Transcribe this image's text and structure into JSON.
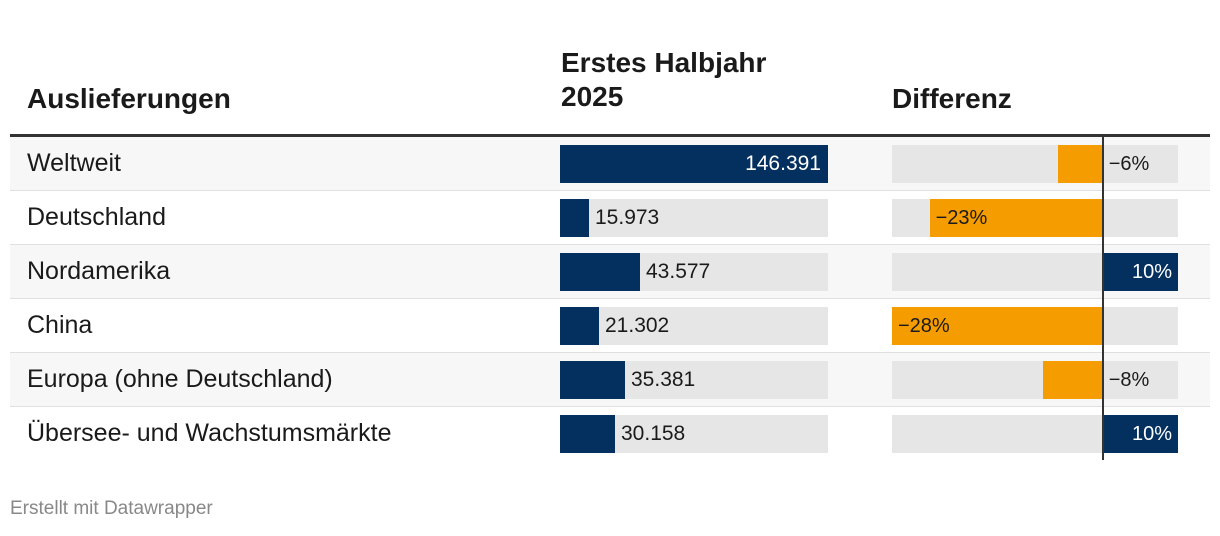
{
  "chart_data": {
    "type": "table",
    "headers": {
      "region": "Auslieferungen",
      "value": "Erstes Halbjahr 2025",
      "diff": "Differenz"
    },
    "rows": [
      {
        "label": "Weltweit",
        "value": 146391,
        "value_text": "146.391",
        "diff": -6,
        "diff_text": "−6%"
      },
      {
        "label": "Deutschland",
        "value": 15973,
        "value_text": "15.973",
        "diff": -23,
        "diff_text": "−23%"
      },
      {
        "label": "Nordamerika",
        "value": 43577,
        "value_text": "43.577",
        "diff": 10,
        "diff_text": "10%"
      },
      {
        "label": "China",
        "value": 21302,
        "value_text": "21.302",
        "diff": -28,
        "diff_text": "−28%"
      },
      {
        "label": "Europa (ohne Deutschland)",
        "value": 35381,
        "value_text": "35.381",
        "diff": -8,
        "diff_text": "−8%"
      },
      {
        "label": "Übersee- und Wachstumsmärkte",
        "value": 30158,
        "value_text": "30.158",
        "diff": 10,
        "diff_text": "10%"
      }
    ],
    "value_max": 146391,
    "diff_range": [
      -28,
      10
    ],
    "colors": {
      "bar": "#04305f",
      "negative": "#f59d00",
      "positive": "#04305f",
      "background_bar": "#e6e6e6"
    }
  },
  "footer": {
    "credit": "Erstellt mit Datawrapper"
  }
}
